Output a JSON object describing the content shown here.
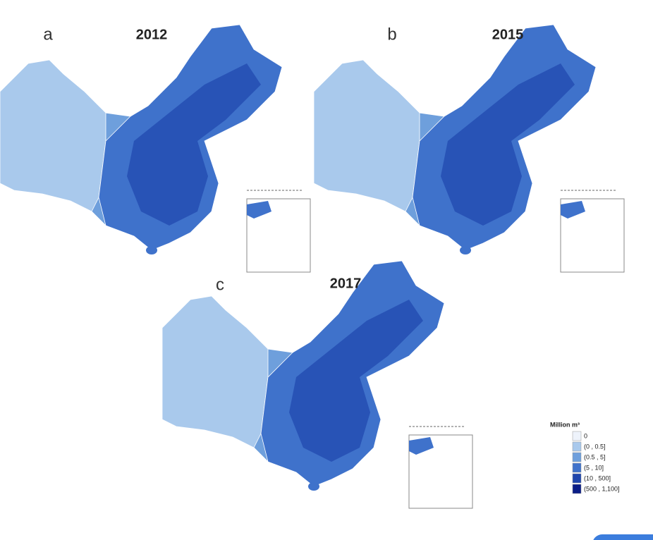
{
  "panels": [
    {
      "label": "a",
      "year": "2012"
    },
    {
      "label": "b",
      "year": "2015"
    },
    {
      "label": "c",
      "year": "2017"
    }
  ],
  "legend": {
    "title": "Million m³",
    "items": [
      {
        "label": "0",
        "color": "#eef3fb"
      },
      {
        "label": "(0 , 0.5]",
        "color": "#a9c9ec"
      },
      {
        "label": "(0.5 , 5]",
        "color": "#6e9fdc"
      },
      {
        "label": "(5 , 10]",
        "color": "#3f72cb"
      },
      {
        "label": "(10 , 500]",
        "color": "#1f46ad"
      },
      {
        "label": "(500 , 1,100]",
        "color": "#0a1d86"
      }
    ]
  }
}
